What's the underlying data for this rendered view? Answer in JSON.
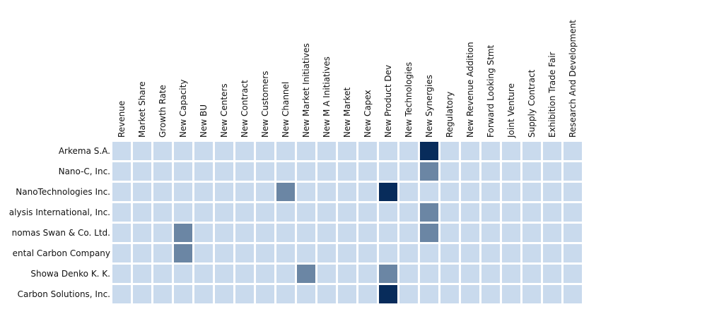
{
  "chart_data": {
    "type": "heatmap",
    "title": "",
    "xlabel": "",
    "ylabel": "",
    "columns": [
      "Revenue",
      "Market Share",
      "Growth Rate",
      "New Capacity",
      "New BU",
      "New Centers",
      "New Contract",
      "New Customers",
      "New Channel",
      "New Market Initiatives",
      "New M A Initiatives",
      "New Market",
      "New Capex",
      "New Product Dev",
      "New Technologies",
      "New Synergies",
      "Regulatory",
      "New Revenue Addition",
      "Forward Looking Stmt",
      "Joint Venture",
      "Supply Contract",
      "Exhibition Trade Fair",
      "Research And Development"
    ],
    "rows": [
      "Arkema S.A.",
      "Nano-C, Inc.",
      "NanoTechnologies Inc.",
      "alysis International, Inc.",
      "nomas Swan & Co. Ltd.",
      "ental Carbon Company",
      "Showa Denko K. K.",
      "Carbon Solutions, Inc."
    ],
    "values": [
      [
        0,
        0,
        0,
        0,
        0,
        0,
        0,
        0,
        0,
        0,
        0,
        0,
        0,
        0,
        0,
        2,
        0,
        0,
        0,
        0,
        0,
        0,
        0
      ],
      [
        0,
        0,
        0,
        0,
        0,
        0,
        0,
        0,
        0,
        0,
        0,
        0,
        0,
        0,
        0,
        1,
        0,
        0,
        0,
        0,
        0,
        0,
        0
      ],
      [
        0,
        0,
        0,
        0,
        0,
        0,
        0,
        0,
        1,
        0,
        0,
        0,
        0,
        2,
        0,
        0,
        0,
        0,
        0,
        0,
        0,
        0,
        0
      ],
      [
        0,
        0,
        0,
        0,
        0,
        0,
        0,
        0,
        0,
        0,
        0,
        0,
        0,
        0,
        0,
        1,
        0,
        0,
        0,
        0,
        0,
        0,
        0
      ],
      [
        0,
        0,
        0,
        1,
        0,
        0,
        0,
        0,
        0,
        0,
        0,
        0,
        0,
        0,
        0,
        1,
        0,
        0,
        0,
        0,
        0,
        0,
        0
      ],
      [
        0,
        0,
        0,
        1,
        0,
        0,
        0,
        0,
        0,
        0,
        0,
        0,
        0,
        0,
        0,
        0,
        0,
        0,
        0,
        0,
        0,
        0,
        0
      ],
      [
        0,
        0,
        0,
        0,
        0,
        0,
        0,
        0,
        0,
        1,
        0,
        0,
        0,
        1,
        0,
        0,
        0,
        0,
        0,
        0,
        0,
        0,
        0
      ],
      [
        0,
        0,
        0,
        0,
        0,
        0,
        0,
        0,
        0,
        0,
        0,
        0,
        0,
        2,
        0,
        0,
        0,
        0,
        0,
        0,
        0,
        0,
        0
      ]
    ],
    "colors": [
      "#c9daed",
      "#6b86a4",
      "#082c5b"
    ],
    "grid": false,
    "legend": "none"
  }
}
